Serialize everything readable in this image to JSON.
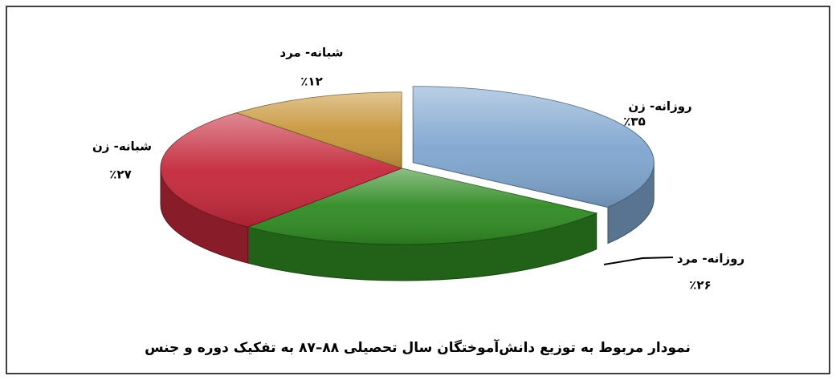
{
  "chart_data": {
    "type": "pie",
    "title": "نمودار مربوط به توزیع دانش‌آموختگان سال تحصیلی ۸۸–۸۷ به تفکیک دوره و جنس",
    "categories": [
      "روزانه- زن",
      "روزانه- مرد",
      "شبانه- زن",
      "شبانه- مرد"
    ],
    "values": [
      35,
      26,
      27,
      12
    ],
    "value_labels": [
      "٪۳۵",
      "٪۲۶",
      "٪۲۷",
      "٪۱۲"
    ],
    "colors": [
      "#7fa6cf",
      "#2f8a22",
      "#c4283a",
      "#c8963a"
    ]
  }
}
